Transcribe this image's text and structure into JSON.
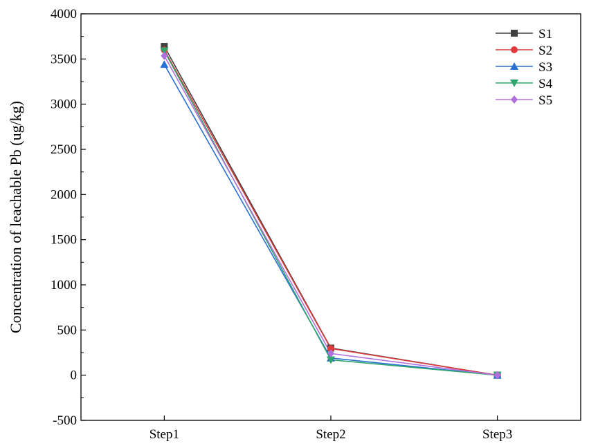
{
  "chart_data": {
    "type": "line",
    "title": "",
    "xlabel": "",
    "ylabel": "Concentration of leachable Pb (ug/kg)",
    "categories": [
      "Step1",
      "Step2",
      "Step3"
    ],
    "ylim": [
      -500,
      4000
    ],
    "yticks": [
      -500,
      0,
      500,
      1000,
      1500,
      2000,
      2500,
      3000,
      3500,
      4000
    ],
    "grid": false,
    "legend": "top-right",
    "series": [
      {
        "name": "S1",
        "values": [
          3640,
          300,
          0
        ],
        "color": "#404040",
        "marker": "square"
      },
      {
        "name": "S2",
        "values": [
          3600,
          295,
          0
        ],
        "color": "#e03c3c",
        "marker": "circle"
      },
      {
        "name": "S3",
        "values": [
          3440,
          190,
          0
        ],
        "color": "#2a6fd4",
        "marker": "triangle-up"
      },
      {
        "name": "S4",
        "values": [
          3590,
          170,
          0
        ],
        "color": "#2ea56b",
        "marker": "triangle-down"
      },
      {
        "name": "S5",
        "values": [
          3535,
          240,
          0
        ],
        "color": "#b070e0",
        "marker": "diamond"
      }
    ]
  }
}
